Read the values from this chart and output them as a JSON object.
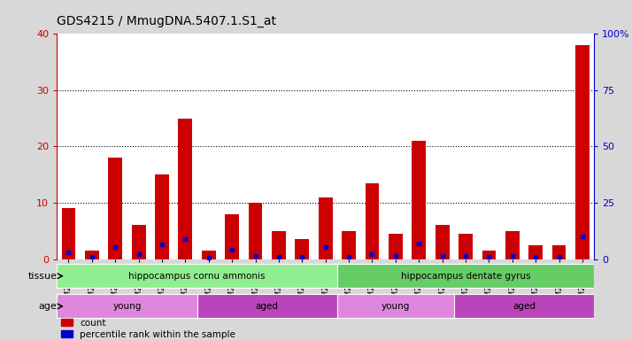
{
  "title": "GDS4215 / MmugDNA.5407.1.S1_at",
  "samples": [
    "GSM297138",
    "GSM297139",
    "GSM297140",
    "GSM297141",
    "GSM297142",
    "GSM297143",
    "GSM297144",
    "GSM297145",
    "GSM297146",
    "GSM297147",
    "GSM297148",
    "GSM297149",
    "GSM297150",
    "GSM297151",
    "GSM297152",
    "GSM297153",
    "GSM297154",
    "GSM297155",
    "GSM297156",
    "GSM297157",
    "GSM297158",
    "GSM297159",
    "GSM297160"
  ],
  "count_values": [
    9,
    1.5,
    18,
    6,
    15,
    25,
    1.5,
    8,
    10,
    5,
    3.5,
    11,
    5,
    13.5,
    4.5,
    21,
    6,
    4.5,
    1.5,
    5,
    2.5,
    2.5,
    38
  ],
  "percentile_values": [
    3,
    1,
    5.5,
    2,
    6.5,
    9,
    0.5,
    4,
    1.5,
    1,
    1,
    5.5,
    1,
    2,
    1.5,
    7,
    1.5,
    1.5,
    1,
    1.5,
    1,
    1,
    10
  ],
  "bar_color": "#cc0000",
  "dot_color": "#0000cc",
  "ylim_left": [
    0,
    40
  ],
  "ylim_right": [
    0,
    100
  ],
  "yticks_left": [
    0,
    10,
    20,
    30,
    40
  ],
  "yticks_right": [
    0,
    25,
    50,
    75,
    100
  ],
  "tissue_groups": [
    {
      "label": "hippocampus cornu ammonis",
      "start": 0,
      "end": 12,
      "color": "#90ee90"
    },
    {
      "label": "hippocampus dentate gyrus",
      "start": 12,
      "end": 23,
      "color": "#66cc66"
    }
  ],
  "age_groups": [
    {
      "label": "young",
      "start": 0,
      "end": 6,
      "color": "#dd88dd"
    },
    {
      "label": "aged",
      "start": 6,
      "end": 12,
      "color": "#bb44bb"
    },
    {
      "label": "young",
      "start": 12,
      "end": 17,
      "color": "#dd88dd"
    },
    {
      "label": "aged",
      "start": 17,
      "end": 23,
      "color": "#bb44bb"
    }
  ],
  "tissue_label": "tissue",
  "age_label": "age",
  "legend_count": "count",
  "legend_percentile": "percentile rank within the sample",
  "background_color": "#d8d8d8",
  "plot_bg_color": "#ffffff",
  "title_fontsize": 10,
  "axis_label_color_left": "#cc0000",
  "axis_label_color_right": "#0000cc"
}
